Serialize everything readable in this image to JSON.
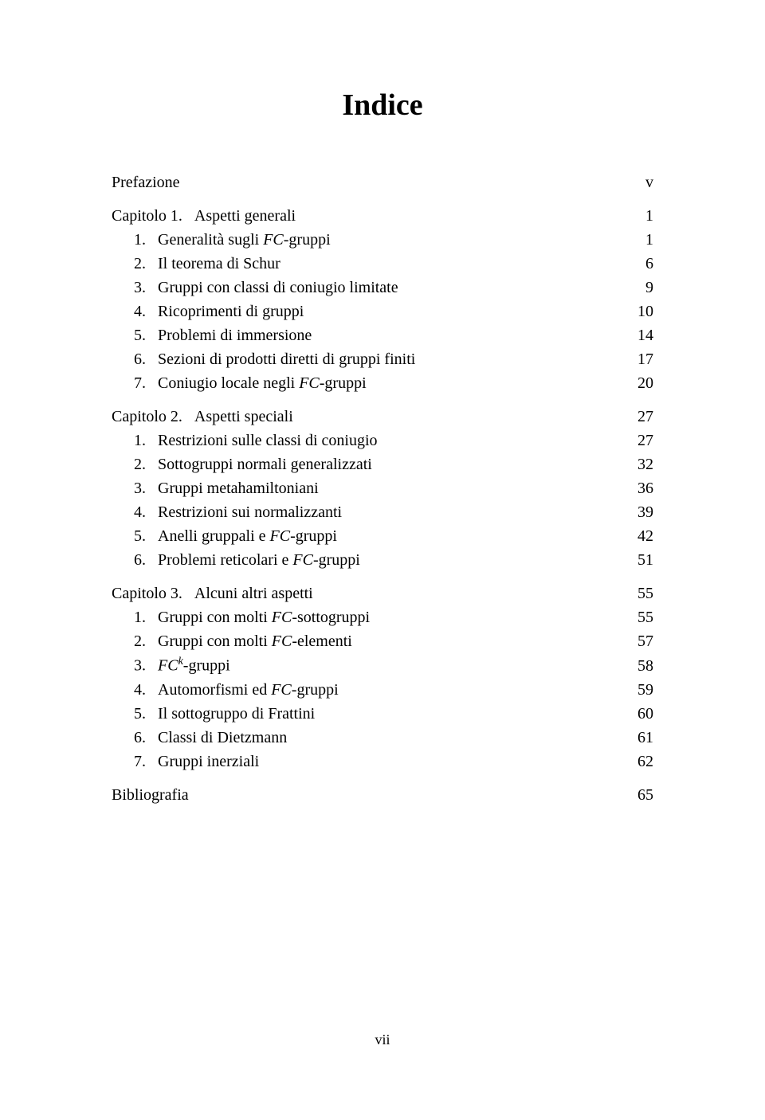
{
  "title": "Indice",
  "page_number": "vii",
  "toc": [
    {
      "type": "row",
      "label_html": "Prefazione",
      "page": "v",
      "indent": false
    },
    {
      "type": "gap"
    },
    {
      "type": "row",
      "label_html": "Capitolo 1.&nbsp;&nbsp;&nbsp;Aspetti generali",
      "page": "1",
      "indent": false
    },
    {
      "type": "row",
      "label_html": "1.&nbsp;&nbsp;&nbsp;Generalità sugli <span class=\"italic\">FC</span>-gruppi",
      "page": "1",
      "indent": true
    },
    {
      "type": "row",
      "label_html": "2.&nbsp;&nbsp;&nbsp;Il teorema di Schur",
      "page": "6",
      "indent": true
    },
    {
      "type": "row",
      "label_html": "3.&nbsp;&nbsp;&nbsp;Gruppi con classi di coniugio limitate",
      "page": "9",
      "indent": true
    },
    {
      "type": "row",
      "label_html": "4.&nbsp;&nbsp;&nbsp;Ricoprimenti di gruppi",
      "page": "10",
      "indent": true
    },
    {
      "type": "row",
      "label_html": "5.&nbsp;&nbsp;&nbsp;Problemi di immersione",
      "page": "14",
      "indent": true
    },
    {
      "type": "row",
      "label_html": "6.&nbsp;&nbsp;&nbsp;Sezioni di prodotti diretti di gruppi finiti",
      "page": "17",
      "indent": true
    },
    {
      "type": "row",
      "label_html": "7.&nbsp;&nbsp;&nbsp;Coniugio locale negli <span class=\"italic\">FC</span>-gruppi",
      "page": "20",
      "indent": true
    },
    {
      "type": "gap"
    },
    {
      "type": "row",
      "label_html": "Capitolo 2.&nbsp;&nbsp;&nbsp;Aspetti speciali",
      "page": "27",
      "indent": false
    },
    {
      "type": "row",
      "label_html": "1.&nbsp;&nbsp;&nbsp;Restrizioni sulle classi di coniugio",
      "page": "27",
      "indent": true
    },
    {
      "type": "row",
      "label_html": "2.&nbsp;&nbsp;&nbsp;Sottogruppi normali generalizzati",
      "page": "32",
      "indent": true
    },
    {
      "type": "row",
      "label_html": "3.&nbsp;&nbsp;&nbsp;Gruppi metahamiltoniani",
      "page": "36",
      "indent": true
    },
    {
      "type": "row",
      "label_html": "4.&nbsp;&nbsp;&nbsp;Restrizioni sui normalizzanti",
      "page": "39",
      "indent": true
    },
    {
      "type": "row",
      "label_html": "5.&nbsp;&nbsp;&nbsp;Anelli gruppali e <span class=\"italic\">FC</span>-gruppi",
      "page": "42",
      "indent": true
    },
    {
      "type": "row",
      "label_html": "6.&nbsp;&nbsp;&nbsp;Problemi reticolari e <span class=\"italic\">FC</span>-gruppi",
      "page": "51",
      "indent": true
    },
    {
      "type": "gap"
    },
    {
      "type": "row",
      "label_html": "Capitolo 3.&nbsp;&nbsp;&nbsp;Alcuni altri aspetti",
      "page": "55",
      "indent": false
    },
    {
      "type": "row",
      "label_html": "1.&nbsp;&nbsp;&nbsp;Gruppi con molti <span class=\"italic\">FC</span>-sottogruppi",
      "page": "55",
      "indent": true
    },
    {
      "type": "row",
      "label_html": "2.&nbsp;&nbsp;&nbsp;Gruppi con molti <span class=\"italic\">FC</span>-elementi",
      "page": "57",
      "indent": true
    },
    {
      "type": "row",
      "label_html": "3.&nbsp;&nbsp;&nbsp;<span class=\"italic\">FC</span><span class=\"sup\">k</span>-gruppi",
      "page": "58",
      "indent": true
    },
    {
      "type": "row",
      "label_html": "4.&nbsp;&nbsp;&nbsp;Automorfismi ed <span class=\"italic\">FC</span>-gruppi",
      "page": "59",
      "indent": true
    },
    {
      "type": "row",
      "label_html": "5.&nbsp;&nbsp;&nbsp;Il sottogruppo di Frattini",
      "page": "60",
      "indent": true
    },
    {
      "type": "row",
      "label_html": "6.&nbsp;&nbsp;&nbsp;Classi di Dietzmann",
      "page": "61",
      "indent": true
    },
    {
      "type": "row",
      "label_html": "7.&nbsp;&nbsp;&nbsp;Gruppi inerziali",
      "page": "62",
      "indent": true
    },
    {
      "type": "gap"
    },
    {
      "type": "row",
      "label_html": "Bibliografia",
      "page": "65",
      "indent": false
    }
  ]
}
